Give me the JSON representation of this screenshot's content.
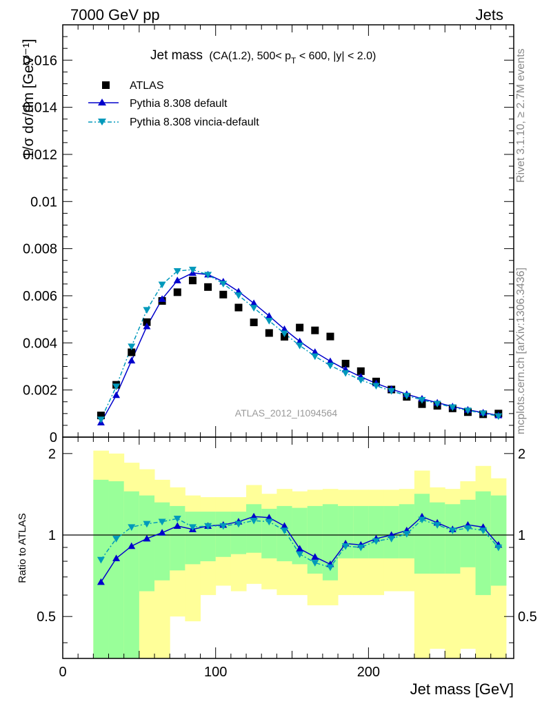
{
  "header": {
    "left": "7000 GeV pp",
    "right": "Jets"
  },
  "sidebar": {
    "top": "Rivet 3.1.10, ≥ 2.7M events",
    "bottom": "mcplots.cern.ch [arXiv:1306.3436]"
  },
  "chart_data": {
    "type": "scatter",
    "title": "Jet mass",
    "title_detail": {
      "prefix": "(CA(1.2), 500< p",
      "subscript": "T",
      "suffix": " < 600, |y| < 2.0)"
    },
    "watermark": "ATLAS_2012_I1094564",
    "xlabel": "Jet mass [GeV]",
    "ylabel_main": "1/σ dσ/dm [GeV⁻¹]",
    "ylabel_ratio": "Ratio to ATLAS",
    "xlim": [
      0,
      295
    ],
    "ylim_main": [
      0,
      0.0175
    ],
    "ylim_ratio": [
      0.35,
      2.3
    ],
    "x_ticks": [
      0,
      100,
      200
    ],
    "y_ticks_main": [
      "0",
      "0.002",
      "0.004",
      "0.006",
      "0.008",
      "0.01",
      "0.012",
      "0.014",
      "0.016"
    ],
    "y_ticks_ratio": [
      "0.5",
      "1",
      "2"
    ],
    "legend_position": "top-left",
    "colors": {
      "atlas": "#000000",
      "default": "#0000cc",
      "vincia": "#0099bb",
      "band_inner": "#99ff99",
      "band_outer": "#ffff99"
    },
    "x": [
      25,
      35,
      45,
      55,
      65,
      75,
      85,
      95,
      105,
      115,
      125,
      135,
      145,
      155,
      165,
      175,
      185,
      195,
      205,
      215,
      225,
      235,
      245,
      255,
      265,
      275,
      285
    ],
    "series": [
      {
        "name": "ATLAS",
        "marker": "square",
        "values": [
          0.00092,
          0.00222,
          0.0036,
          0.00488,
          0.00578,
          0.00615,
          0.00665,
          0.00637,
          0.00605,
          0.0055,
          0.00487,
          0.00442,
          0.00426,
          0.00465,
          0.00453,
          0.00427,
          0.00312,
          0.0028,
          0.00236,
          0.00202,
          0.00171,
          0.0014,
          0.00133,
          0.00122,
          0.00106,
          0.00097,
          0.001
        ]
      },
      {
        "name": "Pythia 8.308 default",
        "marker": "triangle-up",
        "values": [
          0.00062,
          0.00178,
          0.00325,
          0.0047,
          0.00586,
          0.00665,
          0.00697,
          0.0069,
          0.0066,
          0.00618,
          0.00568,
          0.00514,
          0.00458,
          0.00406,
          0.00361,
          0.00322,
          0.00287,
          0.00256,
          0.00228,
          0.00204,
          0.00182,
          0.00163,
          0.00146,
          0.0013,
          0.00116,
          0.00104,
          0.00092
        ]
      },
      {
        "name": "Pythia 8.308 vincia-default",
        "marker": "triangle-down",
        "values": [
          0.00075,
          0.00215,
          0.00385,
          0.0054,
          0.00648,
          0.00705,
          0.00711,
          0.00689,
          0.00651,
          0.00602,
          0.00549,
          0.00494,
          0.0044,
          0.00389,
          0.00343,
          0.00304,
          0.00272,
          0.00243,
          0.00218,
          0.00196,
          0.00176,
          0.00158,
          0.00142,
          0.00127,
          0.00113,
          0.00101,
          0.00089
        ]
      }
    ],
    "ratio_series": [
      {
        "name": "Pythia 8.308 default",
        "values": [
          0.67,
          0.82,
          0.91,
          0.97,
          1.02,
          1.08,
          1.05,
          1.08,
          1.09,
          1.12,
          1.17,
          1.16,
          1.08,
          0.89,
          0.83,
          0.78,
          0.93,
          0.92,
          0.97,
          1.0,
          1.04,
          1.17,
          1.11,
          1.05,
          1.09,
          1.07,
          0.92
        ]
      },
      {
        "name": "Pythia 8.308 vincia-default",
        "values": [
          0.81,
          0.97,
          1.07,
          1.1,
          1.12,
          1.15,
          1.07,
          1.08,
          1.08,
          1.1,
          1.13,
          1.12,
          1.04,
          0.85,
          0.79,
          0.76,
          0.91,
          0.9,
          0.95,
          0.97,
          1.01,
          1.14,
          1.09,
          1.04,
          1.06,
          1.04,
          0.9
        ]
      }
    ],
    "uncertainty_bands": {
      "bin_edges": [
        20,
        30,
        40,
        50,
        60,
        70,
        80,
        90,
        100,
        110,
        120,
        130,
        140,
        150,
        160,
        170,
        180,
        190,
        200,
        210,
        220,
        230,
        240,
        250,
        260,
        270,
        280,
        290
      ],
      "inner_low": [
        0.35,
        0.35,
        0.35,
        0.62,
        0.68,
        0.74,
        0.78,
        0.8,
        0.83,
        0.85,
        0.86,
        0.82,
        0.8,
        0.78,
        0.72,
        0.68,
        0.82,
        0.82,
        0.82,
        0.82,
        0.82,
        0.72,
        0.72,
        0.72,
        0.76,
        0.6,
        0.65
      ],
      "inner_high": [
        1.6,
        1.58,
        1.45,
        1.4,
        1.32,
        1.28,
        1.22,
        1.22,
        1.22,
        1.22,
        1.3,
        1.25,
        1.28,
        1.26,
        1.28,
        1.3,
        1.28,
        1.28,
        1.28,
        1.28,
        1.3,
        1.42,
        1.32,
        1.3,
        1.35,
        1.45,
        1.4
      ],
      "outer_low": [
        0.35,
        0.35,
        0.35,
        0.35,
        0.35,
        0.5,
        0.48,
        0.6,
        0.65,
        0.62,
        0.66,
        0.63,
        0.6,
        0.6,
        0.55,
        0.55,
        0.6,
        0.6,
        0.6,
        0.62,
        0.62,
        0.35,
        0.38,
        0.35,
        0.38,
        0.35,
        0.35
      ],
      "outer_high": [
        2.05,
        2.0,
        1.85,
        1.75,
        1.6,
        1.5,
        1.4,
        1.38,
        1.38,
        1.38,
        1.53,
        1.42,
        1.48,
        1.45,
        1.47,
        1.48,
        1.47,
        1.47,
        1.47,
        1.47,
        1.48,
        1.73,
        1.5,
        1.48,
        1.58,
        1.8,
        1.62
      ]
    }
  }
}
